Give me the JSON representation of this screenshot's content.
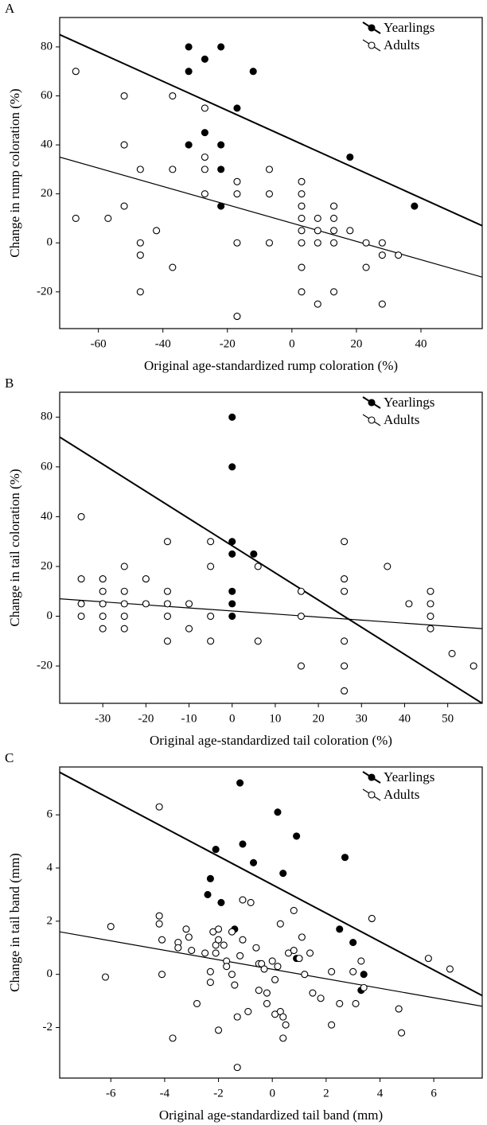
{
  "chart_data": [
    {
      "type": "scatter",
      "panel_label": "A",
      "xlabel": "Original age-standardized rump coloration (%)",
      "ylabel": "Change in rump coloration (%)",
      "xlim": [
        -72,
        59
      ],
      "ylim": [
        -35,
        92
      ],
      "xticks": [
        -60,
        -40,
        -20,
        0,
        20,
        40
      ],
      "yticks": [
        -20,
        0,
        20,
        40,
        60,
        80
      ],
      "legend": "upper right",
      "series": [
        {
          "name": "Yearlings",
          "color": "#000000",
          "marker": "filled",
          "x": [
            -32,
            -22,
            -27,
            -32,
            -12,
            -17,
            -27,
            -32,
            -22,
            18,
            -22,
            -22,
            38
          ],
          "y": [
            80,
            80,
            75,
            70,
            70,
            55,
            45,
            40,
            40,
            35,
            30,
            15,
            15
          ],
          "trend": {
            "x": [
              -72,
              59
            ],
            "y": [
              85,
              7
            ]
          }
        },
        {
          "name": "Adults",
          "color": "#000000",
          "marker": "open",
          "x": [
            -67,
            -52,
            -37,
            -52,
            -27,
            -27,
            -47,
            -37,
            -27,
            -7,
            -27,
            -17,
            -17,
            -7,
            3,
            3,
            3,
            3,
            13,
            13,
            8,
            -67,
            -57,
            -52,
            -42,
            -47,
            -47,
            -17,
            -7,
            3,
            13,
            13,
            8,
            18,
            23,
            28,
            28,
            33,
            23,
            3,
            -37,
            -47,
            3,
            13,
            8,
            28,
            -17,
            3,
            8
          ],
          "y": [
            70,
            60,
            60,
            40,
            55,
            35,
            30,
            30,
            30,
            30,
            20,
            25,
            20,
            20,
            25,
            20,
            15,
            10,
            15,
            10,
            10,
            10,
            10,
            15,
            5,
            0,
            -5,
            0,
            0,
            0,
            0,
            5,
            5,
            5,
            0,
            0,
            -5,
            -5,
            -10,
            -10,
            -10,
            -20,
            -20,
            -20,
            -25,
            -25,
            -30,
            5,
            0
          ],
          "trend": {
            "x": [
              -72,
              59
            ],
            "y": [
              35,
              -14
            ]
          }
        }
      ]
    },
    {
      "type": "scatter",
      "panel_label": "B",
      "xlabel": "Original age-standardized tail coloration (%)",
      "ylabel": "Change in tail coloration (%)",
      "xlim": [
        -40,
        58
      ],
      "ylim": [
        -35,
        90
      ],
      "xticks": [
        -30,
        -20,
        -10,
        0,
        10,
        20,
        30,
        40,
        50
      ],
      "yticks": [
        -20,
        0,
        20,
        40,
        60,
        80
      ],
      "legend": "upper right",
      "series": [
        {
          "name": "Yearlings",
          "color": "#000000",
          "marker": "filled",
          "x": [
            0,
            0,
            0,
            0,
            5,
            0,
            0,
            0
          ],
          "y": [
            80,
            60,
            30,
            25,
            25,
            10,
            5,
            0
          ],
          "trend": {
            "x": [
              -40,
              58
            ],
            "y": [
              72,
              -35
            ]
          }
        },
        {
          "name": "Adults",
          "color": "#000000",
          "marker": "open",
          "x": [
            -35,
            -35,
            -35,
            -35,
            -30,
            -30,
            -30,
            -30,
            -30,
            -25,
            -25,
            -25,
            -25,
            -25,
            -20,
            -20,
            -15,
            -15,
            -15,
            -15,
            -15,
            -10,
            -10,
            -5,
            -5,
            -5,
            -5,
            6,
            6,
            16,
            16,
            16,
            26,
            26,
            26,
            26,
            26,
            26,
            36,
            41,
            46,
            46,
            46,
            46,
            51,
            56
          ],
          "y": [
            40,
            15,
            5,
            0,
            15,
            10,
            5,
            0,
            -5,
            20,
            10,
            5,
            0,
            -5,
            15,
            5,
            30,
            10,
            5,
            0,
            -10,
            5,
            -5,
            30,
            20,
            0,
            -10,
            20,
            -10,
            10,
            0,
            -20,
            30,
            15,
            10,
            -10,
            -20,
            -30,
            20,
            5,
            10,
            5,
            0,
            -5,
            -15,
            -20
          ],
          "trend": {
            "x": [
              -40,
              58
            ],
            "y": [
              7,
              -5
            ]
          }
        }
      ]
    },
    {
      "type": "scatter",
      "panel_label": "C",
      "xlabel": "Original age-standardized tail band (mm)",
      "ylabel": "Change in tail band (mm)",
      "xlim": [
        -7.9,
        7.8
      ],
      "ylim": [
        -3.9,
        7.8
      ],
      "xticks": [
        -6,
        -4,
        -2,
        0,
        2,
        4,
        6
      ],
      "yticks": [
        -2,
        0,
        2,
        4,
        6
      ],
      "legend": "upper right",
      "series": [
        {
          "name": "Yearlings",
          "color": "#000000",
          "marker": "filled",
          "x": [
            -1.2,
            0.2,
            -1.1,
            0.9,
            -2.1,
            -0.7,
            0.4,
            2.7,
            -2.3,
            -2.4,
            -1.9,
            -1.4,
            2.5,
            3.0,
            3.4,
            0.9,
            3.3
          ],
          "y": [
            7.2,
            6.1,
            4.9,
            5.2,
            4.7,
            4.2,
            3.8,
            4.4,
            3.6,
            3.0,
            2.7,
            1.7,
            1.7,
            1.2,
            0.0,
            0.6,
            -0.6
          ],
          "trend": {
            "x": [
              -7.9,
              7.8
            ],
            "y": [
              7.6,
              -0.8
            ]
          }
        },
        {
          "name": "Adults",
          "color": "#000000",
          "marker": "open",
          "x": [
            -6.2,
            -6,
            -4.2,
            -4.2,
            -4.2,
            -4.1,
            -4.1,
            -3.7,
            -3.5,
            -3.5,
            -3.2,
            -3.1,
            -3,
            -2.8,
            -2.5,
            -2.3,
            -2.3,
            -2.2,
            -2.1,
            -2.1,
            -2.0,
            -2.0,
            -2.0,
            -1.8,
            -1.7,
            -1.7,
            -1.5,
            -1.5,
            -1.4,
            -1.3,
            -1.3,
            -1.2,
            -1.1,
            -1.1,
            -0.9,
            -0.8,
            -0.6,
            -0.5,
            -0.5,
            -0.4,
            -0.3,
            -0.2,
            -0.2,
            0.0,
            0.1,
            0.1,
            0.2,
            0.3,
            0.3,
            0.4,
            0.4,
            0.5,
            0.6,
            0.8,
            0.8,
            1.0,
            1.1,
            1.2,
            1.4,
            1.5,
            1.8,
            2.2,
            2.2,
            2.5,
            3.0,
            3.1,
            3.3,
            3.4,
            3.7,
            4.7,
            4.8,
            5.8,
            6.6
          ],
          "y": [
            -0.1,
            1.8,
            6.3,
            2.2,
            1.9,
            1.3,
            0,
            -2.4,
            1.2,
            1.0,
            1.7,
            1.4,
            0.9,
            -1.1,
            0.8,
            0.1,
            -0.3,
            1.6,
            1.1,
            0.8,
            1.7,
            1.3,
            -2.1,
            1.1,
            0.5,
            0.3,
            1.6,
            0,
            -0.4,
            -1.6,
            -3.5,
            0.7,
            2.8,
            1.3,
            -1.4,
            2.7,
            1.0,
            0.4,
            -0.6,
            0.4,
            0.2,
            -1.1,
            -0.7,
            0.5,
            -0.2,
            -1.5,
            0.3,
            1.9,
            -1.4,
            -1.6,
            -2.4,
            -1.9,
            0.8,
            2.4,
            0.9,
            0.6,
            1.4,
            0.0,
            0.8,
            -0.7,
            -0.9,
            -1.9,
            0.1,
            -1.1,
            0.1,
            -1.1,
            0.5,
            -0.5,
            2.1,
            -1.3,
            -2.2,
            0.6,
            0.2
          ],
          "trend": {
            "x": [
              -7.9,
              7.8
            ],
            "y": [
              1.6,
              -1.2
            ]
          }
        }
      ]
    }
  ]
}
